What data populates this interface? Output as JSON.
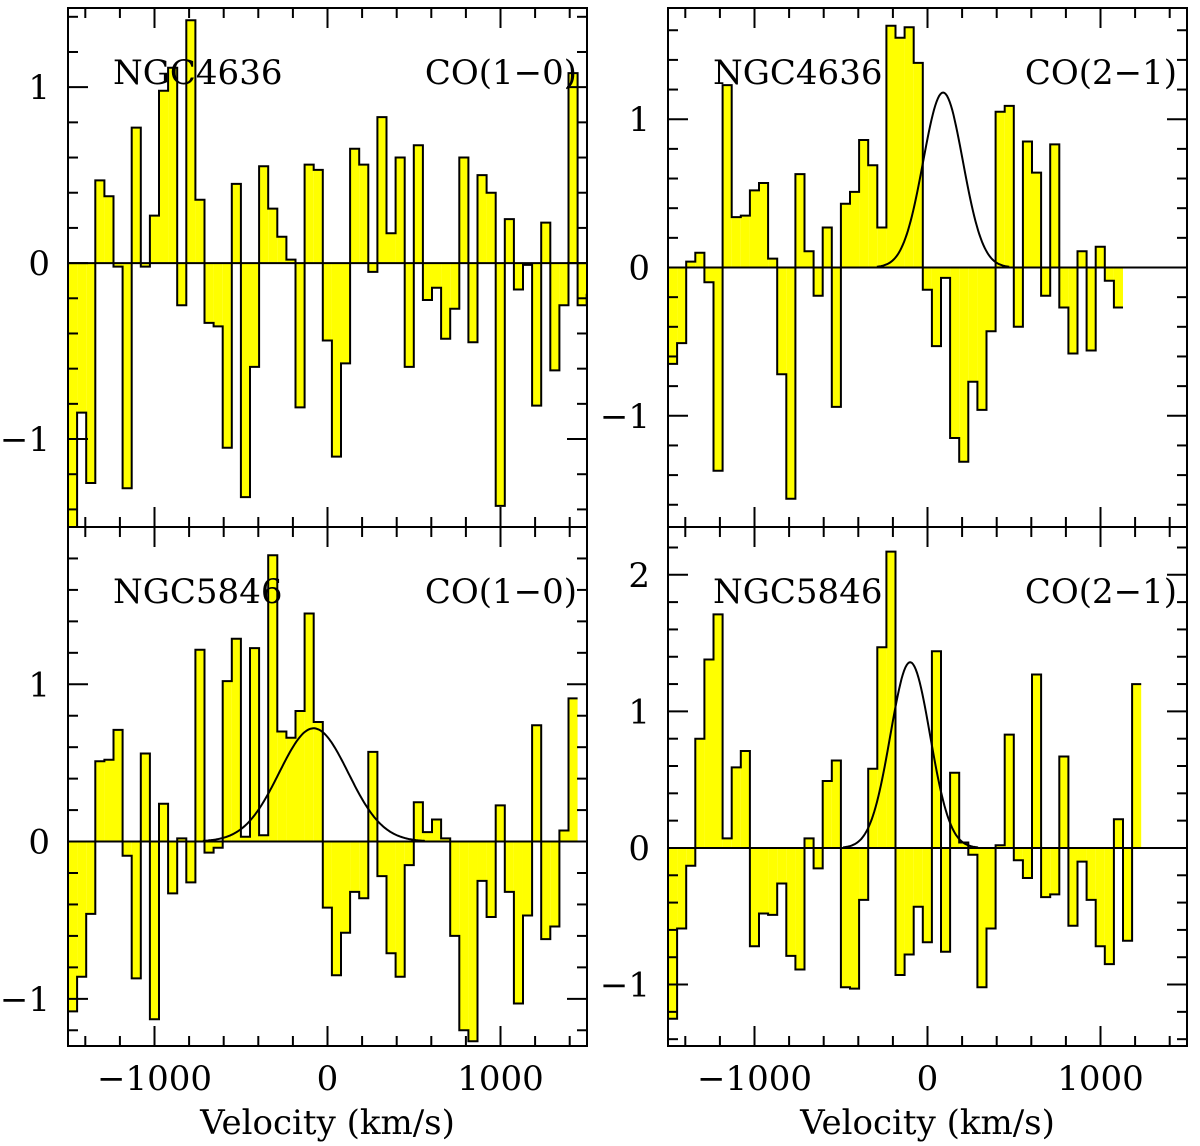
{
  "colors": {
    "fill": "#ffff00",
    "stroke": "#000000"
  },
  "chart_data": [
    {
      "type": "histogram",
      "galaxy": "NGC4636",
      "line": "CO(1−0)",
      "xlim": [
        -1500,
        1500
      ],
      "ylim": [
        -1.5,
        1.45
      ],
      "bin_width": 52.6,
      "xticks": [
        -1000,
        0,
        1000
      ],
      "xtick_labels": [
        "−1000",
        "0",
        "1000"
      ],
      "yticks": [
        -1,
        0,
        1
      ],
      "ytick_labels": [
        "−1",
        "0",
        "1"
      ],
      "xlabel": "",
      "values": [
        -1.5,
        -0.85,
        -1.25,
        0.47,
        0.38,
        -0.02,
        -1.28,
        0.77,
        -0.02,
        0.27,
        0.98,
        1.11,
        -0.24,
        1.38,
        0.36,
        -0.34,
        -0.36,
        -1.05,
        0.45,
        -1.33,
        -0.59,
        0.55,
        0.31,
        0.15,
        0.02,
        -0.82,
        0.56,
        0.53,
        -0.44,
        -1.1,
        -0.57,
        0.65,
        0.56,
        -0.05,
        0.83,
        0.17,
        0.6,
        -0.59,
        0.67,
        -0.21,
        -0.14,
        -0.43,
        -0.26,
        0.6,
        -0.45,
        0.5,
        0.4,
        -1.38,
        0.25,
        -0.15,
        -0.01,
        -0.81,
        0.23,
        -0.61,
        -0.24,
        1.08,
        -0.24,
        -0.18
      ],
      "fit": null
    },
    {
      "type": "histogram",
      "galaxy": "NGC4636",
      "line": "CO(2−1)",
      "xlim": [
        -1500,
        1500
      ],
      "ylim": [
        -1.75,
        1.75
      ],
      "bin_width": 52.6,
      "xticks": [
        -1000,
        0,
        1000
      ],
      "xtick_labels": [
        "−1000",
        "0",
        "1000"
      ],
      "yticks": [
        -1,
        0,
        1
      ],
      "ytick_labels": [
        "−1",
        "0",
        "1"
      ],
      "xlabel": "",
      "values": [
        -0.65,
        -0.51,
        0.04,
        0.1,
        -0.1,
        -1.37,
        1.23,
        0.34,
        0.35,
        0.52,
        0.57,
        0.06,
        -0.72,
        -1.56,
        0.63,
        0.11,
        -0.19,
        0.27,
        -0.94,
        0.43,
        0.51,
        0.86,
        0.69,
        0.27,
        1.63,
        1.55,
        1.62,
        1.38,
        -0.15,
        -0.53,
        -0.07,
        -1.15,
        -1.31,
        -0.77,
        -0.96,
        -0.43,
        1.05,
        1.09,
        -0.4,
        0.85,
        0.64,
        -0.19,
        0.83,
        -0.27,
        -0.58,
        0.11,
        -0.56,
        0.14,
        -0.09,
        -0.27
      ],
      "fit": {
        "amplitude": 1.18,
        "center": 90,
        "sigma": 115
      }
    },
    {
      "type": "histogram",
      "galaxy": "NGC5846",
      "line": "CO(1−0)",
      "xlim": [
        -1500,
        1500
      ],
      "ylim": [
        -1.3,
        2.0
      ],
      "bin_width": 52.6,
      "xticks": [
        -1000,
        0,
        1000
      ],
      "xtick_labels": [
        "−1000",
        "0",
        "1000"
      ],
      "yticks": [
        -1,
        0,
        1
      ],
      "ytick_labels": [
        "−1",
        "0",
        "1"
      ],
      "xlabel": "Velocity (km/s)",
      "values": [
        -1.08,
        -0.86,
        -0.46,
        0.51,
        0.52,
        0.71,
        -0.09,
        -0.87,
        0.56,
        -1.13,
        0.24,
        -0.33,
        0.02,
        -0.26,
        1.22,
        -0.07,
        -0.04,
        1.02,
        1.29,
        0.03,
        1.23,
        0.04,
        1.82,
        0.7,
        0.66,
        0.83,
        1.45,
        0.76,
        -0.42,
        -0.85,
        -0.58,
        -0.32,
        -0.36,
        0.57,
        -0.22,
        -0.71,
        -0.86,
        -0.15,
        0.25,
        0.06,
        0.14,
        0.02,
        -0.6,
        -1.2,
        -1.27,
        -0.25,
        -0.48,
        0.23,
        -0.32,
        -1.03,
        -0.47,
        0.74,
        -0.62,
        -0.54,
        0.07,
        0.91
      ],
      "fit": {
        "amplitude": 0.72,
        "center": -80,
        "sigma": 200
      }
    },
    {
      "type": "histogram",
      "galaxy": "NGC5846",
      "line": "CO(2−1)",
      "xlim": [
        -1500,
        1500
      ],
      "ylim": [
        -1.45,
        2.35
      ],
      "bin_width": 52.6,
      "xticks": [
        -1000,
        0,
        1000
      ],
      "xtick_labels": [
        "−1000",
        "0",
        "1000"
      ],
      "yticks": [
        -1,
        0,
        1,
        2
      ],
      "ytick_labels": [
        "−1",
        "0",
        "1",
        "2"
      ],
      "xlabel": "Velocity (km/s)",
      "values": [
        -1.25,
        -0.59,
        -0.13,
        0.8,
        1.38,
        1.71,
        0.07,
        0.59,
        0.71,
        -0.72,
        -0.48,
        -0.49,
        -0.26,
        -0.79,
        -0.89,
        0.07,
        -0.15,
        0.49,
        0.64,
        -1.02,
        -1.03,
        -0.38,
        0.58,
        1.47,
        2.17,
        -0.93,
        -0.78,
        -0.43,
        -0.69,
        1.44,
        -0.76,
        0.55,
        0.04,
        -0.05,
        -1.02,
        -0.59,
        0.02,
        0.83,
        -0.09,
        -0.22,
        1.27,
        -0.36,
        -0.34,
        0.67,
        -0.57,
        -0.1,
        -0.38,
        -0.72,
        -0.85,
        0.21,
        -0.68,
        1.2
      ],
      "fit": {
        "amplitude": 1.36,
        "center": -100,
        "sigma": 115
      }
    }
  ]
}
